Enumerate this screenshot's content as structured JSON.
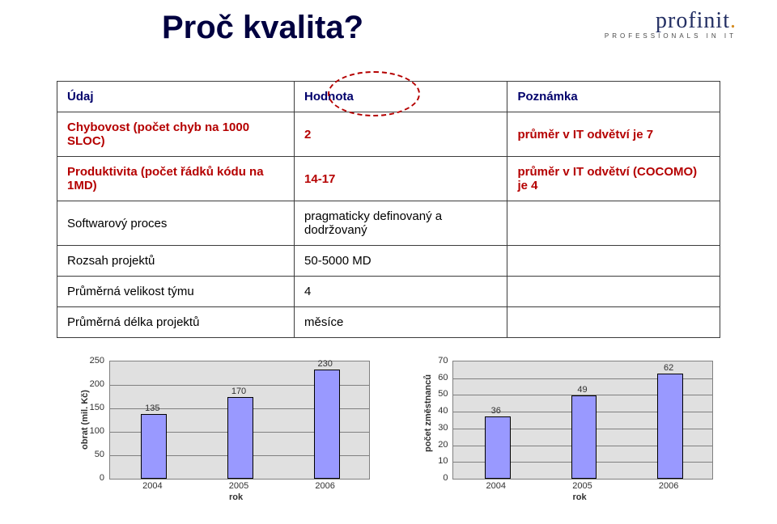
{
  "title": "Proč kvalita?",
  "logo": {
    "brand": "profinit",
    "tagline": "PROFESSIONALS IN IT"
  },
  "table": {
    "headers": [
      "Údaj",
      "Hodnota",
      "Poznámka"
    ],
    "rows": [
      [
        "Chybovost (počet chyb na 1000 SLOC)",
        "2",
        "průměr v IT odvětví je 7"
      ],
      [
        "Produktivita (počet řádků kódu na 1MD)",
        "14-17",
        "průměr v IT odvětví (COCOMO) je 4"
      ],
      [
        "Softwarový proces",
        "pragmaticky definovaný a dodržovaný",
        ""
      ],
      [
        "Rozsah projektů",
        "50-5000 MD",
        ""
      ],
      [
        "Průměrná velikost týmu",
        "4",
        ""
      ],
      [
        "Průměrná délka projektů",
        "měsíce",
        ""
      ]
    ]
  },
  "chart_left": {
    "type": "bar",
    "categories": [
      "2004",
      "2005",
      "2006"
    ],
    "values": [
      135,
      170,
      230
    ],
    "ylim": [
      0,
      250
    ],
    "ytick_step": 50,
    "bar_fill": "#9999ff",
    "bar_border": "#000000",
    "plot_bg": "#e0e0e0",
    "grid_color": "#808080",
    "xlabel": "rok",
    "ylabel": "obrat (mil. Kč)",
    "bar_width": 0.28,
    "label_fontsize": 11
  },
  "chart_right": {
    "type": "bar",
    "categories": [
      "2004",
      "2005",
      "2006"
    ],
    "values": [
      36,
      49,
      62
    ],
    "ylim": [
      0,
      70
    ],
    "ytick_step": 10,
    "bar_fill": "#9999ff",
    "bar_border": "#000000",
    "plot_bg": "#e0e0e0",
    "grid_color": "#808080",
    "xlabel": "rok",
    "ylabel": "počet změstnanců",
    "bar_width": 0.28,
    "label_fontsize": 11
  }
}
